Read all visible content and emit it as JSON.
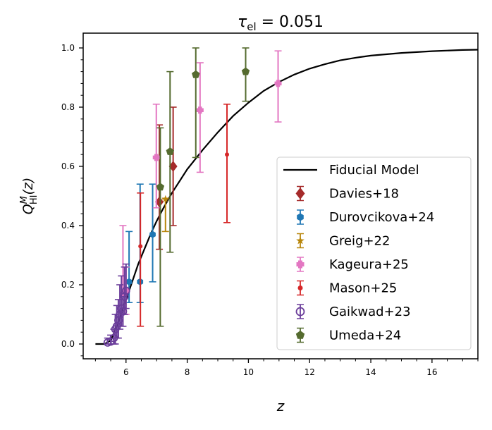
{
  "chart_data": {
    "type": "scatter",
    "title_main": "τ",
    "title_sub": "el",
    "title_value": " = 0.051",
    "xlabel": "z",
    "ylabel_main": "Q",
    "ylabel_sup": "M",
    "ylabel_sub": "HI",
    "ylabel_arg": "(z)",
    "xlim": [
      4.6,
      17.5
    ],
    "ylim": [
      -0.05,
      1.05
    ],
    "xticks": [
      6,
      8,
      10,
      12,
      14,
      16
    ],
    "xtick_labels": [
      "6",
      "8",
      "10",
      "12",
      "14",
      "16"
    ],
    "yticks": [
      0.0,
      0.2,
      0.4,
      0.6,
      0.8,
      1.0
    ],
    "ytick_labels": [
      "0.0",
      "0.2",
      "0.4",
      "0.6",
      "0.8",
      "1.0"
    ],
    "legend_position": "lower-right",
    "model": {
      "name": "Fiducial Model",
      "color": "#000000",
      "x": [
        5.0,
        5.3,
        5.5,
        5.7,
        5.9,
        6.0,
        6.2,
        6.4,
        6.6,
        6.8,
        7.0,
        7.2,
        7.5,
        8.0,
        8.5,
        9.0,
        9.5,
        10.0,
        10.5,
        11.0,
        11.5,
        12.0,
        12.5,
        13.0,
        13.5,
        14.0,
        15.0,
        16.0,
        17.0,
        17.5
      ],
      "y": [
        0.0,
        0.0,
        0.012,
        0.06,
        0.12,
        0.15,
        0.21,
        0.27,
        0.32,
        0.37,
        0.415,
        0.455,
        0.51,
        0.59,
        0.655,
        0.715,
        0.77,
        0.815,
        0.855,
        0.885,
        0.91,
        0.93,
        0.945,
        0.958,
        0.967,
        0.974,
        0.983,
        0.989,
        0.993,
        0.994
      ]
    },
    "series": [
      {
        "name": "Davies+18",
        "color": "#a52a2a",
        "marker": "diamond",
        "size": 6,
        "points": [
          {
            "x": 7.09,
            "y": 0.48,
            "ylo": 0.32,
            "yhi": 0.74
          },
          {
            "x": 7.54,
            "y": 0.6,
            "ylo": 0.4,
            "yhi": 0.8
          }
        ]
      },
      {
        "name": "Durovcikova+24",
        "color": "#1f77b4",
        "marker": "hexagon",
        "size": 5,
        "points": [
          {
            "x": 6.1,
            "y": 0.21,
            "ylo": 0.14,
            "yhi": 0.38
          },
          {
            "x": 6.46,
            "y": 0.21,
            "ylo": 0.14,
            "yhi": 0.54
          },
          {
            "x": 6.87,
            "y": 0.37,
            "ylo": 0.21,
            "yhi": 0.54
          }
        ]
      },
      {
        "name": "Greig+22",
        "color": "#b8860b",
        "marker": "star",
        "size": 5,
        "points": [
          {
            "x": 7.29,
            "y": 0.49,
            "ylo": 0.38,
            "yhi": 0.49
          }
        ]
      },
      {
        "name": "Kageura+25",
        "color": "#e377c2",
        "marker": "plus",
        "size": 5,
        "points": [
          {
            "x": 5.9,
            "y": 0.17,
            "ylo": 0.06,
            "yhi": 0.4
          },
          {
            "x": 6.0,
            "y": 0.18,
            "ylo": 0.1,
            "yhi": 0.26
          },
          {
            "x": 6.99,
            "y": 0.63,
            "ylo": 0.46,
            "yhi": 0.81
          },
          {
            "x": 8.42,
            "y": 0.79,
            "ylo": 0.58,
            "yhi": 0.95
          },
          {
            "x": 10.97,
            "y": 0.88,
            "ylo": 0.75,
            "yhi": 0.99
          }
        ]
      },
      {
        "name": "Mason+25",
        "color": "#d62728",
        "marker": "dot",
        "size": 3,
        "points": [
          {
            "x": 6.47,
            "y": 0.33,
            "ylo": 0.06,
            "yhi": 0.51
          },
          {
            "x": 9.3,
            "y": 0.64,
            "ylo": 0.41,
            "yhi": 0.81
          }
        ]
      },
      {
        "name": "Gaikwad+23",
        "color": "#6a3d9a",
        "marker": "circle-open",
        "size": 5,
        "points": [
          {
            "x": 5.4,
            "y": 0.005,
            "ylo": 0.0,
            "yhi": 0.02
          },
          {
            "x": 5.5,
            "y": 0.008,
            "ylo": 0.0,
            "yhi": 0.03
          },
          {
            "x": 5.6,
            "y": 0.02,
            "ylo": 0.0,
            "yhi": 0.05
          },
          {
            "x": 5.65,
            "y": 0.05,
            "ylo": 0.0,
            "yhi": 0.1
          },
          {
            "x": 5.7,
            "y": 0.06,
            "ylo": 0.02,
            "yhi": 0.13
          },
          {
            "x": 5.75,
            "y": 0.08,
            "ylo": 0.02,
            "yhi": 0.15
          },
          {
            "x": 5.8,
            "y": 0.1,
            "ylo": 0.05,
            "yhi": 0.2
          },
          {
            "x": 5.85,
            "y": 0.12,
            "ylo": 0.06,
            "yhi": 0.23
          },
          {
            "x": 5.9,
            "y": 0.11,
            "ylo": 0.06,
            "yhi": 0.16
          },
          {
            "x": 5.95,
            "y": 0.16,
            "ylo": 0.1,
            "yhi": 0.26
          },
          {
            "x": 6.0,
            "y": 0.18,
            "ylo": 0.12,
            "yhi": 0.27
          }
        ]
      },
      {
        "name": "Umeda+24",
        "color": "#556b2f",
        "marker": "pentagon",
        "size": 6,
        "points": [
          {
            "x": 7.12,
            "y": 0.53,
            "ylo": 0.06,
            "yhi": 0.73
          },
          {
            "x": 7.44,
            "y": 0.65,
            "ylo": 0.31,
            "yhi": 0.92
          },
          {
            "x": 8.28,
            "y": 0.91,
            "ylo": 0.63,
            "yhi": 1.0
          },
          {
            "x": 9.91,
            "y": 0.92,
            "ylo": 0.82,
            "yhi": 1.0
          }
        ]
      }
    ]
  }
}
